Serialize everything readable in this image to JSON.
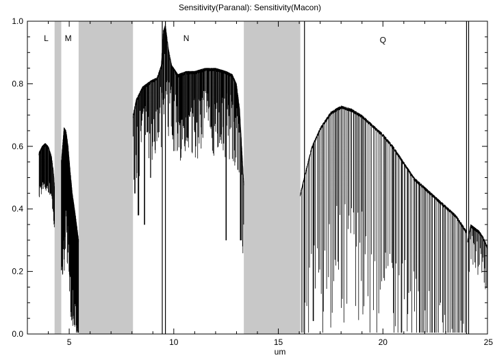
{
  "chart_data": {
    "type": "line",
    "title": "Sensitivity(Paranal): Sensitivity(Macon)",
    "xlabel": "um",
    "ylabel": "",
    "xlim": [
      3.0,
      25.0
    ],
    "ylim": [
      0.0,
      1.0
    ],
    "x_ticks": [
      5,
      10,
      15,
      20,
      25
    ],
    "y_ticks": [
      0.0,
      0.2,
      0.4,
      0.6,
      0.8,
      1.0
    ],
    "x_tick_labels": [
      "5",
      "10",
      "15",
      "20",
      "25"
    ],
    "y_tick_labels": [
      "0.0",
      "0.2",
      "0.4",
      "0.6",
      "0.8",
      "1.0"
    ],
    "grid": false,
    "legend": "none",
    "colors": {
      "line": "#000000",
      "shade": "#c8c8c8",
      "axes": "#000000",
      "background": "#ffffff"
    },
    "shaded_regions": [
      {
        "x0": 4.3,
        "x1": 4.62
      },
      {
        "x0": 5.45,
        "x1": 8.05
      },
      {
        "x0": 13.35,
        "x1": 16.05
      }
    ],
    "vertical_lines": [
      9.45,
      9.6,
      16.25,
      24.0,
      24.1
    ],
    "band_labels": [
      {
        "text": "L",
        "x": 3.9,
        "y": 0.945
      },
      {
        "text": "M",
        "x": 4.95,
        "y": 0.945
      },
      {
        "text": "N",
        "x": 10.6,
        "y": 0.945
      },
      {
        "text": "Q",
        "x": 20.0,
        "y": 0.94
      }
    ],
    "series": [
      {
        "name": "",
        "segments": [
          {
            "x0": 3.55,
            "x1": 4.3,
            "envelope": [
              [
                3.55,
                0.58
              ],
              [
                3.7,
                0.6
              ],
              [
                3.85,
                0.61
              ],
              [
                4.0,
                0.6
              ],
              [
                4.15,
                0.57
              ],
              [
                4.25,
                0.52
              ],
              [
                4.3,
                0.47
              ]
            ],
            "dip_depth": [
              0.1,
              0.15
            ],
            "dip_spacing": 0.018
          },
          {
            "x0": 4.62,
            "x1": 5.45,
            "envelope": [
              [
                4.62,
                0.55
              ],
              [
                4.75,
                0.66
              ],
              [
                4.85,
                0.65
              ],
              [
                4.95,
                0.6
              ],
              [
                5.05,
                0.52
              ],
              [
                5.15,
                0.45
              ],
              [
                5.3,
                0.38
              ],
              [
                5.45,
                0.3
              ]
            ],
            "dip_depth": [
              0.25,
              0.45
            ],
            "dip_spacing": 0.013,
            "deep_dips": [
              [
                4.72,
                0.3
              ],
              [
                5.0,
                0.2
              ],
              [
                5.15,
                0.08
              ],
              [
                5.25,
                0.03
              ],
              [
                5.35,
                0.01
              ]
            ]
          },
          {
            "x0": 8.05,
            "x1": 13.35,
            "envelope": [
              [
                8.05,
                0.7
              ],
              [
                8.2,
                0.75
              ],
              [
                8.5,
                0.79
              ],
              [
                8.9,
                0.81
              ],
              [
                9.2,
                0.82
              ],
              [
                9.4,
                0.86
              ],
              [
                9.5,
                0.97
              ],
              [
                9.6,
                0.99
              ],
              [
                9.75,
                0.91
              ],
              [
                9.9,
                0.86
              ],
              [
                10.2,
                0.83
              ],
              [
                10.6,
                0.84
              ],
              [
                11.0,
                0.84
              ],
              [
                11.5,
                0.85
              ],
              [
                12.0,
                0.85
              ],
              [
                12.5,
                0.84
              ],
              [
                12.8,
                0.83
              ],
              [
                13.0,
                0.8
              ],
              [
                13.15,
                0.72
              ],
              [
                13.25,
                0.6
              ],
              [
                13.35,
                0.48
              ]
            ],
            "dip_depth": [
              0.06,
              0.28
            ],
            "dip_spacing": 0.022,
            "deep_dips": [
              [
                8.15,
                0.45
              ],
              [
                8.3,
                0.38
              ],
              [
                8.6,
                0.35
              ],
              [
                8.9,
                0.5
              ],
              [
                12.5,
                0.3
              ],
              [
                13.2,
                0.3
              ]
            ]
          },
          {
            "x0": 16.05,
            "x1": 24.0,
            "envelope": [
              [
                16.05,
                0.45
              ],
              [
                16.3,
                0.52
              ],
              [
                16.6,
                0.6
              ],
              [
                17.0,
                0.66
              ],
              [
                17.5,
                0.71
              ],
              [
                18.0,
                0.73
              ],
              [
                18.5,
                0.72
              ],
              [
                19.0,
                0.7
              ],
              [
                19.5,
                0.67
              ],
              [
                20.0,
                0.64
              ],
              [
                20.5,
                0.6
              ],
              [
                21.0,
                0.55
              ],
              [
                21.5,
                0.5
              ],
              [
                22.0,
                0.47
              ],
              [
                22.5,
                0.44
              ],
              [
                23.0,
                0.41
              ],
              [
                23.5,
                0.38
              ],
              [
                24.0,
                0.33
              ]
            ],
            "dip_depth": [
              0.3,
              0.7
            ],
            "dip_spacing": 0.06
          },
          {
            "x0": 24.05,
            "x1": 25.0,
            "envelope": [
              [
                24.05,
                0.3
              ],
              [
                24.2,
                0.35
              ],
              [
                24.4,
                0.34
              ],
              [
                24.6,
                0.33
              ],
              [
                24.8,
                0.31
              ],
              [
                25.0,
                0.28
              ]
            ],
            "dip_depth": [
              0.02,
              0.15
            ],
            "dip_spacing": 0.04
          }
        ]
      }
    ]
  }
}
